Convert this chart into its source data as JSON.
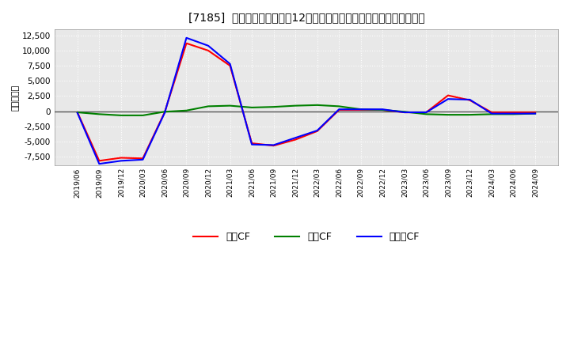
{
  "title": "[7185]  キャッシュフローの12か月移動合計の対前年同期増減額の推移",
  "ylabel": "（百万円）",
  "label_eigyo": "営業CF",
  "label_toshi": "投資CF",
  "label_free": "フリーCF",
  "background_color": "#ffffff",
  "plot_bg_color": "#e8e8e8",
  "grid_color": "#ffffff",
  "zero_line_color": "#555555",
  "ylim": [
    -9000,
    13500
  ],
  "yticks": [
    -7500,
    -5000,
    -2500,
    0,
    2500,
    5000,
    7500,
    10000,
    12500
  ],
  "dates": [
    "2019/06",
    "2019/09",
    "2019/12",
    "2020/03",
    "2020/06",
    "2020/09",
    "2020/12",
    "2021/03",
    "2021/06",
    "2021/09",
    "2021/12",
    "2022/03",
    "2022/06",
    "2022/09",
    "2022/12",
    "2023/03",
    "2023/06",
    "2023/09",
    "2023/12",
    "2024/03",
    "2024/06",
    "2024/09"
  ],
  "eigyo_cf": [
    -200,
    -8200,
    -7700,
    -7800,
    -200,
    11200,
    10000,
    7500,
    -5300,
    -5700,
    -4700,
    -3300,
    200,
    200,
    200,
    -200,
    -200,
    2600,
    1800,
    -200,
    -200,
    -200
  ],
  "toshi_cf": [
    -200,
    -500,
    -700,
    -700,
    -100,
    100,
    800,
    900,
    600,
    700,
    900,
    1000,
    800,
    300,
    200,
    -100,
    -500,
    -600,
    -600,
    -500,
    -500,
    -400
  ],
  "free_cf": [
    -300,
    -8700,
    -8200,
    -8000,
    -300,
    12100,
    10800,
    7800,
    -5500,
    -5600,
    -4400,
    -3200,
    300,
    300,
    300,
    -200,
    -200,
    2000,
    1900,
    -400,
    -400,
    -400
  ],
  "eigyo_color": "#ff0000",
  "toshi_color": "#008000",
  "free_color": "#0000ff",
  "line_width": 1.5
}
